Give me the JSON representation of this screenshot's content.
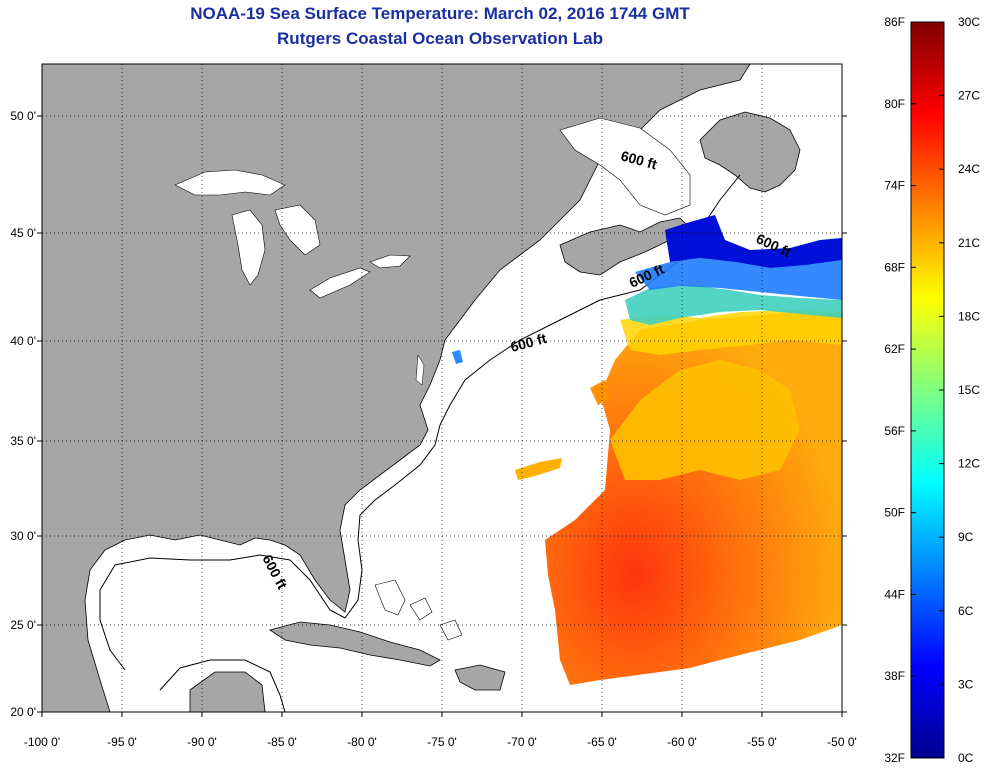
{
  "title": "NOAA-19 Sea Surface Temperature:  March 02, 2016 1744 GMT",
  "subtitle": "Rutgers Coastal Ocean Observation Lab",
  "map": {
    "lon_labels": [
      "-100 0'",
      "-95 0'",
      "-90 0'",
      "-85 0'",
      "-80 0'",
      "-75 0'",
      "-70 0'",
      "-65 0'",
      "-60 0'",
      "-55 0'",
      "-50 0'"
    ],
    "lat_labels": [
      "50 0'",
      "45 0'",
      "40 0'",
      "35 0'",
      "30 0'",
      "25 0'",
      "20 0'"
    ],
    "isobath_labels": [
      "600 ft",
      "600 ft",
      "600 ft",
      "600 ft",
      "600 ft"
    ],
    "land_color": "#a6a6a6",
    "ocean_color": "#ffffff"
  },
  "colorbar": {
    "f_labels": [
      "86F",
      "80F",
      "74F",
      "68F",
      "62F",
      "56F",
      "50F",
      "44F",
      "38F",
      "32F"
    ],
    "c_labels": [
      "30C",
      "27C",
      "24C",
      "21C",
      "18C",
      "15C",
      "12C",
      "9C",
      "6C",
      "3C",
      "0C"
    ],
    "colors": [
      "#00008f",
      "#0000ff",
      "#0080ff",
      "#00ffff",
      "#80ff80",
      "#ffff00",
      "#ff8000",
      "#ff0000",
      "#800000"
    ]
  }
}
